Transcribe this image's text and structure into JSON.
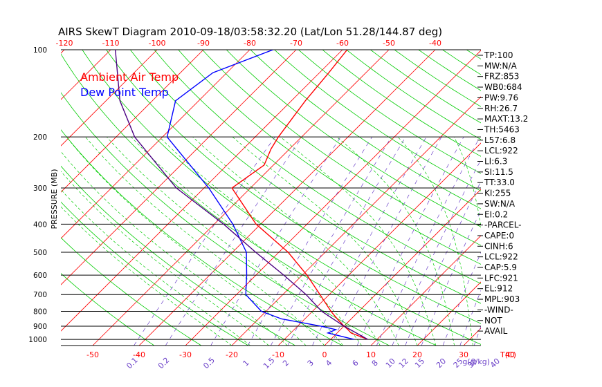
{
  "title": "AIRS SkewT Diagram 2010-09-18/03:58:32.20 (Lat/Lon 51.28/144.87 deg)",
  "chart_data": {
    "type": "line",
    "title": "AIRS SkewT Diagram 2010-09-18/03:58:32.20 (Lat/Lon 51.28/144.87 deg)",
    "ylabel": "PRESSURE (MB)",
    "xlabel": "T(C)",
    "mixing_ratio_label": "g(g/kg)",
    "y_scale": "log",
    "ylim": [
      1050,
      100
    ],
    "pressure_ticks": [
      1000,
      900,
      800,
      700,
      600,
      500,
      400,
      300,
      200,
      100
    ],
    "bottom_temp_ticks": [
      -50,
      -40,
      -30,
      -20,
      -10,
      0,
      10,
      20,
      30,
      40
    ],
    "top_temp_ticks": [
      -120,
      -110,
      -100,
      -90,
      -80,
      -70,
      -60,
      -50,
      -40
    ],
    "mixing_ratio_ticks": [
      "0.1",
      "0.2",
      "0.5",
      "1",
      "1.5",
      "2",
      "3",
      "4",
      "6",
      "8",
      "10",
      "12",
      "15",
      "20",
      "25",
      "30",
      "40"
    ],
    "legend": [
      {
        "name": "Ambient Air Temp",
        "color": "#ff0000"
      },
      {
        "name": "Dew Point Temp",
        "color": "#0000ff"
      }
    ],
    "grid": true,
    "series": [
      {
        "name": "Ambient Air Temp",
        "color": "#ff0000",
        "points": [
          {
            "p": 1000,
            "t": 8
          },
          {
            "p": 950,
            "t": 3
          },
          {
            "p": 925,
            "t": 1.6
          },
          {
            "p": 900,
            "t": 0
          },
          {
            "p": 850,
            "t": -3
          },
          {
            "p": 800,
            "t": -6
          },
          {
            "p": 700,
            "t": -12
          },
          {
            "p": 600,
            "t": -19
          },
          {
            "p": 500,
            "t": -28
          },
          {
            "p": 400,
            "t": -41
          },
          {
            "p": 300,
            "t": -54
          },
          {
            "p": 250,
            "t": -52
          },
          {
            "p": 220,
            "t": -54
          },
          {
            "p": 200,
            "t": -55
          },
          {
            "p": 150,
            "t": -57
          },
          {
            "p": 120,
            "t": -58
          },
          {
            "p": 100,
            "t": -59
          }
        ]
      },
      {
        "name": "Dew Point Temp",
        "color": "#0000ff",
        "points": [
          {
            "p": 1000,
            "t": 5
          },
          {
            "p": 950,
            "t": -2
          },
          {
            "p": 925,
            "t": -1
          },
          {
            "p": 900,
            "t": -5
          },
          {
            "p": 850,
            "t": -15
          },
          {
            "p": 800,
            "t": -21
          },
          {
            "p": 700,
            "t": -28
          },
          {
            "p": 600,
            "t": -32
          },
          {
            "p": 500,
            "t": -37
          },
          {
            "p": 400,
            "t": -46
          },
          {
            "p": 300,
            "t": -59
          },
          {
            "p": 200,
            "t": -79
          },
          {
            "p": 150,
            "t": -85
          },
          {
            "p": 120,
            "t": -83
          },
          {
            "p": 100,
            "t": -75
          }
        ]
      },
      {
        "name": "Parcel",
        "color": "#4b0082",
        "points": [
          {
            "p": 1000,
            "t": 8
          },
          {
            "p": 900,
            "t": 0
          },
          {
            "p": 800,
            "t": -8
          },
          {
            "p": 700,
            "t": -15
          },
          {
            "p": 600,
            "t": -24
          },
          {
            "p": 500,
            "t": -35
          },
          {
            "p": 400,
            "t": -48
          },
          {
            "p": 300,
            "t": -66
          },
          {
            "p": 200,
            "t": -86
          },
          {
            "p": 150,
            "t": -97
          },
          {
            "p": 100,
            "t": -109
          }
        ]
      }
    ]
  },
  "indices": [
    "TP:100",
    "MW:N/A",
    "FRZ:853",
    "WB0:684",
    "PW:9.76",
    "RH:26.7",
    "MAXT:13.2",
    "TH:5463",
    "L57:6.8",
    "LCL:922",
    "LI:6.3",
    "SI:11.5",
    "TT:33.0",
    "KI:255",
    "SW:N/A",
    "EI:0.2",
    "-PARCEL-",
    "CAPE:0",
    "CINH:6",
    "LCL:922",
    "CAP:5.9",
    "LFC:921",
    "EL:912",
    "MPL:903",
    "-WIND-",
    "NOT",
    "AVAIL"
  ],
  "colors": {
    "isotherm": "#ff0000",
    "dry_adiabat": "#00cc00",
    "moist_adiabat": "#00cc00",
    "mixing_ratio": "#6a3fc8",
    "isobar": "#000000",
    "temperature": "#ff0000",
    "dewpoint": "#0000ff",
    "parcel": "#4b0082"
  }
}
